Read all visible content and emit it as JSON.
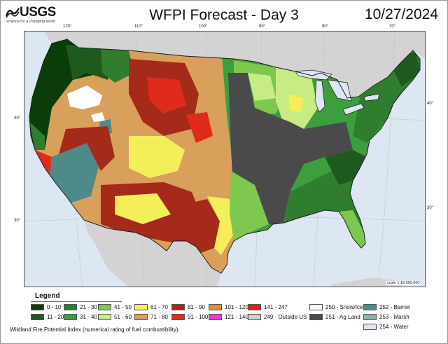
{
  "header": {
    "logo_text": "USGS",
    "logo_tagline": "science for a changing world",
    "title": "WFPI Forecast - Day 3",
    "date": "10/27/2024"
  },
  "map": {
    "longitude_labels": [
      "120°",
      "110°",
      "100°",
      "90°",
      "80°",
      "70°"
    ],
    "latitude_labels": [
      "40°",
      "30°"
    ],
    "scale": "scale 1:18,050,000",
    "colors": {
      "ocean": "#dde7f4",
      "foreign_land": "#d3d3d3",
      "outline": "#1b1b1b"
    }
  },
  "legend": {
    "title": "Legend",
    "items": [
      {
        "label": "0 - 10",
        "color": "#0b3d0b"
      },
      {
        "label": "11 - 20",
        "color": "#1e5a1e"
      },
      {
        "label": "21 - 30",
        "color": "#2f7d2f"
      },
      {
        "label": "31 - 40",
        "color": "#3d9e3d"
      },
      {
        "label": "41 - 50",
        "color": "#7ec850"
      },
      {
        "label": "51 - 60",
        "color": "#c8ec84"
      },
      {
        "label": "61 - 70",
        "color": "#f4ee58"
      },
      {
        "label": "71 - 80",
        "color": "#d8a05a"
      },
      {
        "label": "81 - 90",
        "color": "#a52a1a"
      },
      {
        "label": "91 - 100",
        "color": "#e02b1c"
      },
      {
        "label": "101 - 120",
        "color": "#f08a24"
      },
      {
        "label": "121 - 140",
        "color": "#e93ad8"
      },
      {
        "label": "141 - 247",
        "color": "#ee1b1b"
      },
      {
        "label": "249 - Outside US",
        "color": "#cfcfcf"
      },
      {
        "label": "250 - Snow/Ice",
        "color": "#ffffff"
      },
      {
        "label": "251 - Ag Land",
        "color": "#4a4a4a"
      },
      {
        "label": "252 - Barren",
        "color": "#4f8a8a"
      },
      {
        "label": "253 - Marsh",
        "color": "#8fb0a8"
      },
      {
        "label": "254 - Water",
        "color": "#d9e6f5"
      }
    ]
  },
  "footnote": "Wildland Fire Potential Index (numerical rating of fuel combustibility)."
}
